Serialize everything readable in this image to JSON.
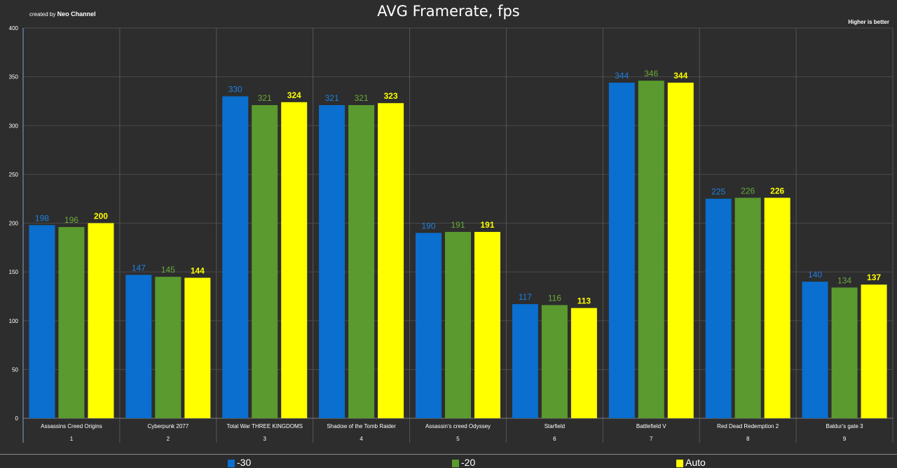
{
  "header": {
    "credit_prefix": "created by",
    "credit_name": "Neo Channel",
    "title": "AVG Framerate, fps",
    "note": "Higher is better"
  },
  "colors": {
    "series_-30": "#0a6fce",
    "series_-20": "#5a9a2e",
    "series_auto": "#ffff00",
    "background": "#2d2d2d",
    "grid": "#4a4a4a"
  },
  "chart_data": {
    "type": "bar",
    "title": "AVG Framerate, fps",
    "ylim": [
      0,
      400
    ],
    "yticks": [
      0,
      50,
      100,
      150,
      200,
      250,
      300,
      350,
      400
    ],
    "grid": true,
    "legend_position": "bottom",
    "categories": [
      "Assassins Creed Origins",
      "Cyberpunk 2077",
      "Total War THREE KINGDOMS",
      "Shadow of the Tomb Raider",
      "Assassin's creed Odyssey",
      "Starfield",
      "Battlefield V",
      "Red Dead Redemption 2",
      "Baldur's gate 3"
    ],
    "category_index": [
      "1",
      "2",
      "3",
      "4",
      "5",
      "6",
      "7",
      "8",
      "9"
    ],
    "series": [
      {
        "name": "-30",
        "color": "#0a6fce",
        "label_color": "#1e7fe0",
        "values": [
          198,
          147,
          330,
          321,
          190,
          117,
          344,
          225,
          140
        ]
      },
      {
        "name": "-20",
        "color": "#5a9a2e",
        "label_color": "#6aab38",
        "values": [
          196,
          145,
          321,
          321,
          191,
          116,
          346,
          226,
          134
        ]
      },
      {
        "name": "Auto",
        "color": "#ffff00",
        "label_color": "#ffff00",
        "values": [
          200,
          144,
          324,
          323,
          191,
          113,
          344,
          226,
          137
        ]
      }
    ]
  }
}
